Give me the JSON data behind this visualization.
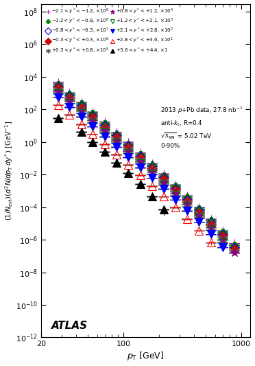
{
  "title_lines": [
    "2013 $p$+Pb data, 27.8 nb$^{-1}$",
    "anti-$k_{\\mathrm{t}}$, R=0.4",
    "$\\sqrt{s_{\\mathrm{NN}}}$ = 5.02 TeV",
    "0-90%"
  ],
  "xlabel": "$p_{\\mathrm{T}}$ [GeV]",
  "ylabel": "$(1/N_{\\mathrm{evt}})(d^2N/dp_{\\mathrm{T}}\\,dy^*)$ [GeV$^{-1}$]",
  "series": [
    {
      "label": "$-2.1 < y^* < -1.2$, $\\times10^9$",
      "color": "#CC00CC",
      "marker": "plus_open",
      "scale": 1000000000.0,
      "pT": [
        28,
        35,
        44,
        55,
        70,
        88,
        110,
        140,
        175,
        220,
        277,
        349,
        440,
        554,
        697,
        877
      ],
      "y": [
        4500.0,
        1100.0,
        280.0,
        70.0,
        17.0,
        4.0,
        0.95,
        0.22,
        0.05,
        0.011,
        0.0024,
        0.0005,
        0.0001,
        1.9e-05,
        3.5e-06,
        6e-07
      ],
      "yerr_lo": [
        0.05,
        0.05,
        0.05,
        0.05,
        0.05,
        0.05,
        0.05,
        0.05,
        0.05,
        0.05,
        0.05,
        0.06,
        0.07,
        0.08,
        0.1,
        0.15
      ],
      "yerr_hi": [
        0.05,
        0.05,
        0.05,
        0.05,
        0.05,
        0.05,
        0.05,
        0.05,
        0.05,
        0.05,
        0.05,
        0.06,
        0.07,
        0.08,
        0.1,
        0.15
      ],
      "syserr": [
        0.08,
        0.08,
        0.08,
        0.08,
        0.08,
        0.08,
        0.08,
        0.08,
        0.08,
        0.08,
        0.08,
        0.08,
        0.08,
        0.08,
        0.08,
        0.08
      ]
    },
    {
      "label": "$-1.2 < y^* < -0.8$, $\\times10^8$",
      "color": "#008800",
      "marker": "plus_full",
      "scale": 100000000.0,
      "pT": [
        28,
        35,
        44,
        55,
        70,
        88,
        110,
        140,
        175,
        220,
        277,
        349,
        440,
        554,
        697,
        877
      ],
      "y": [
        3500.0,
        850.0,
        220.0,
        55.0,
        13.5,
        3.2,
        0.75,
        0.175,
        0.039,
        0.0087,
        0.0019,
        0.0004,
        8e-05,
        1.5e-05,
        2.8e-06,
        4.5e-07
      ],
      "yerr_lo": [
        0.05,
        0.05,
        0.05,
        0.05,
        0.05,
        0.05,
        0.05,
        0.05,
        0.05,
        0.05,
        0.05,
        0.06,
        0.07,
        0.08,
        0.1,
        0.15
      ],
      "yerr_hi": [
        0.05,
        0.05,
        0.05,
        0.05,
        0.05,
        0.05,
        0.05,
        0.05,
        0.05,
        0.05,
        0.05,
        0.06,
        0.07,
        0.08,
        0.1,
        0.15
      ],
      "syserr": [
        0.08,
        0.08,
        0.08,
        0.08,
        0.08,
        0.08,
        0.08,
        0.08,
        0.08,
        0.08,
        0.08,
        0.08,
        0.08,
        0.08,
        0.08,
        0.08
      ]
    },
    {
      "label": "$-0.8 < y^* < -0.3$, $\\times10^7$",
      "color": "#0000DD",
      "marker": "diamond_open",
      "scale": 10000000.0,
      "pT": [
        28,
        35,
        44,
        55,
        70,
        88,
        110,
        140,
        175,
        220,
        277,
        349,
        440,
        554,
        697,
        877
      ],
      "y": [
        2800.0,
        680.0,
        175.0,
        44.0,
        10.8,
        2.55,
        0.6,
        0.14,
        0.031,
        0.007,
        0.0015,
        0.00032,
        6.5e-05,
        1.2e-05,
        2.2e-06,
        3.5e-07
      ],
      "yerr_lo": [
        0.05,
        0.05,
        0.05,
        0.05,
        0.05,
        0.05,
        0.05,
        0.05,
        0.05,
        0.05,
        0.05,
        0.06,
        0.07,
        0.08,
        0.1,
        0.15
      ],
      "yerr_hi": [
        0.05,
        0.05,
        0.05,
        0.05,
        0.05,
        0.05,
        0.05,
        0.05,
        0.05,
        0.05,
        0.05,
        0.06,
        0.07,
        0.08,
        0.1,
        0.15
      ],
      "syserr": [
        0.08,
        0.08,
        0.08,
        0.08,
        0.08,
        0.08,
        0.08,
        0.08,
        0.08,
        0.08,
        0.08,
        0.08,
        0.08,
        0.08,
        0.08,
        0.08
      ]
    },
    {
      "label": "$-0.3 < y^* < +0.3$, $\\times10^6$",
      "color": "#CC0000",
      "marker": "diamond_full",
      "scale": 1000000.0,
      "pT": [
        28,
        35,
        44,
        55,
        70,
        88,
        110,
        140,
        175,
        220,
        277,
        349,
        440,
        554,
        697,
        877
      ],
      "y": [
        2200.0,
        540.0,
        138.0,
        35.0,
        8.6,
        2.02,
        0.475,
        0.11,
        0.0245,
        0.0055,
        0.0012,
        0.00025,
        5e-05,
        9.5e-06,
        1.8e-06,
        2.8e-07
      ],
      "yerr_lo": [
        0.05,
        0.05,
        0.05,
        0.05,
        0.05,
        0.05,
        0.05,
        0.05,
        0.05,
        0.05,
        0.05,
        0.06,
        0.07,
        0.08,
        0.1,
        0.15
      ],
      "yerr_hi": [
        0.05,
        0.05,
        0.05,
        0.05,
        0.05,
        0.05,
        0.05,
        0.05,
        0.05,
        0.05,
        0.05,
        0.06,
        0.07,
        0.08,
        0.1,
        0.15
      ],
      "syserr": [
        0.08,
        0.08,
        0.08,
        0.08,
        0.08,
        0.08,
        0.08,
        0.08,
        0.08,
        0.08,
        0.08,
        0.08,
        0.08,
        0.08,
        0.08,
        0.08
      ]
    },
    {
      "label": "$+0.3 < y^* < +0.8$, $\\times10^5$",
      "color": "#555555",
      "marker": "star_open",
      "scale": 100000.0,
      "pT": [
        28,
        35,
        44,
        55,
        70,
        88,
        110,
        140,
        175,
        220,
        277,
        349,
        440,
        554,
        697,
        877
      ],
      "y": [
        1750.0,
        430.0,
        110.0,
        27.5,
        6.8,
        1.6,
        0.375,
        0.087,
        0.0195,
        0.0043,
        0.00094,
        0.0002,
        4e-05,
        7.5e-06,
        1.4e-06,
        2.2e-07
      ],
      "yerr_lo": [
        0.05,
        0.05,
        0.05,
        0.05,
        0.05,
        0.05,
        0.05,
        0.05,
        0.05,
        0.05,
        0.05,
        0.06,
        0.07,
        0.08,
        0.1,
        0.15
      ],
      "yerr_hi": [
        0.05,
        0.05,
        0.05,
        0.05,
        0.05,
        0.05,
        0.05,
        0.05,
        0.05,
        0.05,
        0.05,
        0.06,
        0.07,
        0.08,
        0.1,
        0.15
      ],
      "syserr": [
        0.08,
        0.08,
        0.08,
        0.08,
        0.08,
        0.08,
        0.08,
        0.08,
        0.08,
        0.08,
        0.08,
        0.08,
        0.08,
        0.08,
        0.08,
        0.08
      ]
    },
    {
      "label": "$+0.8 < y^* < +1.2$, $\\times10^4$",
      "color": "#880088",
      "marker": "star_full",
      "scale": 10000.0,
      "pT": [
        28,
        35,
        44,
        55,
        70,
        88,
        110,
        140,
        175,
        220,
        277,
        349,
        440,
        554,
        697,
        877
      ],
      "y": [
        1300.0,
        320.0,
        82.0,
        21.0,
        5.1,
        1.2,
        0.28,
        0.065,
        0.0145,
        0.0032,
        0.0007,
        0.00015,
        3e-05,
        5.5e-06,
        1e-06,
        1.6e-07
      ],
      "yerr_lo": [
        0.05,
        0.05,
        0.05,
        0.05,
        0.05,
        0.05,
        0.05,
        0.05,
        0.05,
        0.05,
        0.05,
        0.06,
        0.07,
        0.08,
        0.12,
        0.18
      ],
      "yerr_hi": [
        0.05,
        0.05,
        0.05,
        0.05,
        0.05,
        0.05,
        0.05,
        0.05,
        0.05,
        0.05,
        0.05,
        0.06,
        0.07,
        0.08,
        0.12,
        0.18
      ],
      "syserr": [
        0.08,
        0.08,
        0.08,
        0.08,
        0.08,
        0.08,
        0.08,
        0.08,
        0.08,
        0.08,
        0.08,
        0.08,
        0.08,
        0.08,
        0.08,
        0.08
      ]
    },
    {
      "label": "$+1.2 < y^* < +2.1$, $\\times10^3$",
      "color": "#007700",
      "marker": "tri_down_open",
      "scale": 1000.0,
      "pT": [
        28,
        35,
        44,
        55,
        70,
        88,
        110,
        140,
        175,
        220,
        277,
        349,
        440,
        554,
        697
      ],
      "y": [
        950.0,
        235.0,
        60.0,
        15.2,
        3.75,
        0.88,
        0.205,
        0.0475,
        0.0106,
        0.00235,
        0.00051,
        0.00011,
        2.2e-05,
        4e-06,
        7e-07
      ],
      "yerr_lo": [
        0.05,
        0.05,
        0.05,
        0.05,
        0.05,
        0.05,
        0.05,
        0.05,
        0.05,
        0.05,
        0.05,
        0.06,
        0.07,
        0.1,
        0.15
      ],
      "yerr_hi": [
        0.05,
        0.05,
        0.05,
        0.05,
        0.05,
        0.05,
        0.05,
        0.05,
        0.05,
        0.05,
        0.05,
        0.06,
        0.07,
        0.1,
        0.15
      ],
      "syserr": [
        0.08,
        0.08,
        0.08,
        0.08,
        0.08,
        0.08,
        0.08,
        0.08,
        0.08,
        0.08,
        0.08,
        0.08,
        0.08,
        0.08,
        0.08
      ]
    },
    {
      "label": "$+2.1 < y^* < +2.8$, $\\times10^2$",
      "color": "#0000FF",
      "marker": "tri_down_full",
      "scale": 100.0,
      "pT": [
        28,
        35,
        44,
        55,
        70,
        88,
        110,
        140,
        175,
        220,
        277,
        349,
        440,
        554,
        697
      ],
      "y": [
        550.0,
        135.0,
        34.5,
        8.7,
        2.15,
        0.5,
        0.117,
        0.027,
        0.006,
        0.00135,
        0.00029,
        6e-05,
        1.2e-05,
        2.1e-06,
        3.5e-07
      ],
      "yerr_lo": [
        0.05,
        0.05,
        0.05,
        0.05,
        0.05,
        0.05,
        0.05,
        0.05,
        0.05,
        0.05,
        0.06,
        0.07,
        0.09,
        0.12,
        0.18
      ],
      "yerr_hi": [
        0.05,
        0.05,
        0.05,
        0.05,
        0.05,
        0.05,
        0.05,
        0.05,
        0.05,
        0.05,
        0.06,
        0.07,
        0.09,
        0.12,
        0.18
      ],
      "syserr": [
        0.08,
        0.08,
        0.08,
        0.08,
        0.08,
        0.08,
        0.08,
        0.08,
        0.08,
        0.08,
        0.08,
        0.08,
        0.08,
        0.08,
        0.08
      ]
    },
    {
      "label": "$+2.8 < y^* < +3.6$, $\\times10^1$",
      "color": "#FF0000",
      "marker": "tri_up_open",
      "scale": 10,
      "pT": [
        28,
        35,
        44,
        55,
        70,
        88,
        110,
        140,
        175,
        220,
        277,
        349,
        440,
        554
      ],
      "y": [
        190.0,
        46.0,
        11.8,
        3.0,
        0.73,
        0.17,
        0.04,
        0.009,
        0.002,
        0.00044,
        9.4e-05,
        1.9e-05,
        3.7e-06,
        6.5e-07
      ],
      "yerr_lo": [
        0.05,
        0.05,
        0.05,
        0.05,
        0.05,
        0.05,
        0.05,
        0.05,
        0.06,
        0.08,
        0.1,
        0.13,
        0.18,
        0.3
      ],
      "yerr_hi": [
        0.05,
        0.05,
        0.05,
        0.05,
        0.05,
        0.05,
        0.05,
        0.05,
        0.06,
        0.08,
        0.1,
        0.13,
        0.18,
        0.3
      ],
      "syserr": [
        0.08,
        0.08,
        0.08,
        0.08,
        0.08,
        0.08,
        0.08,
        0.08,
        0.08,
        0.08,
        0.08,
        0.08,
        0.08,
        0.08
      ]
    },
    {
      "label": "$+3.6 < y^* < +4.4$, $\\times1$",
      "color": "#000000",
      "marker": "tri_up_full",
      "scale": 1,
      "pT": [
        28,
        44,
        55,
        70,
        88,
        110,
        140,
        175,
        220
      ],
      "y": [
        30.0,
        4.0,
        1.0,
        0.24,
        0.055,
        0.012,
        0.0025,
        0.00045,
        7.5e-05
      ],
      "yerr_lo": [
        0.08,
        0.08,
        0.1,
        0.12,
        0.15,
        0.2,
        0.28,
        0.4,
        0.6
      ],
      "yerr_hi": [
        0.08,
        0.08,
        0.1,
        0.12,
        0.15,
        0.2,
        0.28,
        0.4,
        0.6
      ],
      "syserr": [
        0.1,
        0.1,
        0.1,
        0.1,
        0.1,
        0.1,
        0.1,
        0.1,
        0.1
      ]
    }
  ],
  "xlim": [
    20,
    1200
  ],
  "ylim": [
    1e-12,
    300000000.0
  ],
  "atlas_text": "ATLAS",
  "background_color": "#ffffff",
  "legend_data": [
    {
      "label": "$-2.1 < y^* < -1.2$, $\\times10^9$",
      "color": "#CC00CC",
      "marker": "plus_open"
    },
    {
      "label": "$-1.2 < y^* < -0.8$, $\\times10^8$",
      "color": "#008800",
      "marker": "plus_full"
    },
    {
      "label": "$-0.8 < y^* < -0.3$, $\\times10^7$",
      "color": "#0000DD",
      "marker": "diamond_open"
    },
    {
      "label": "$-0.3 < y^* < +0.3$, $\\times10^6$",
      "color": "#CC0000",
      "marker": "diamond_full"
    },
    {
      "label": "$+0.3 < y^* < +0.8$, $\\times10^5$",
      "color": "#555555",
      "marker": "star_open"
    },
    {
      "label": "$+0.8 < y^* < +1.2$, $\\times10^4$",
      "color": "#880088",
      "marker": "star_full"
    },
    {
      "label": "$+1.2 < y^* < +2.1$, $\\times10^3$",
      "color": "#007700",
      "marker": "tri_down_open"
    },
    {
      "label": "$+2.1 < y^* < +2.8$, $\\times10^2$",
      "color": "#0000FF",
      "marker": "tri_down_full"
    },
    {
      "label": "$+2.8 < y^* < +3.6$, $\\times10^1$",
      "color": "#FF0000",
      "marker": "tri_up_open"
    },
    {
      "label": "$+3.6 < y^* < +4.4$, $\\times1$",
      "color": "#000000",
      "marker": "tri_up_full"
    }
  ]
}
